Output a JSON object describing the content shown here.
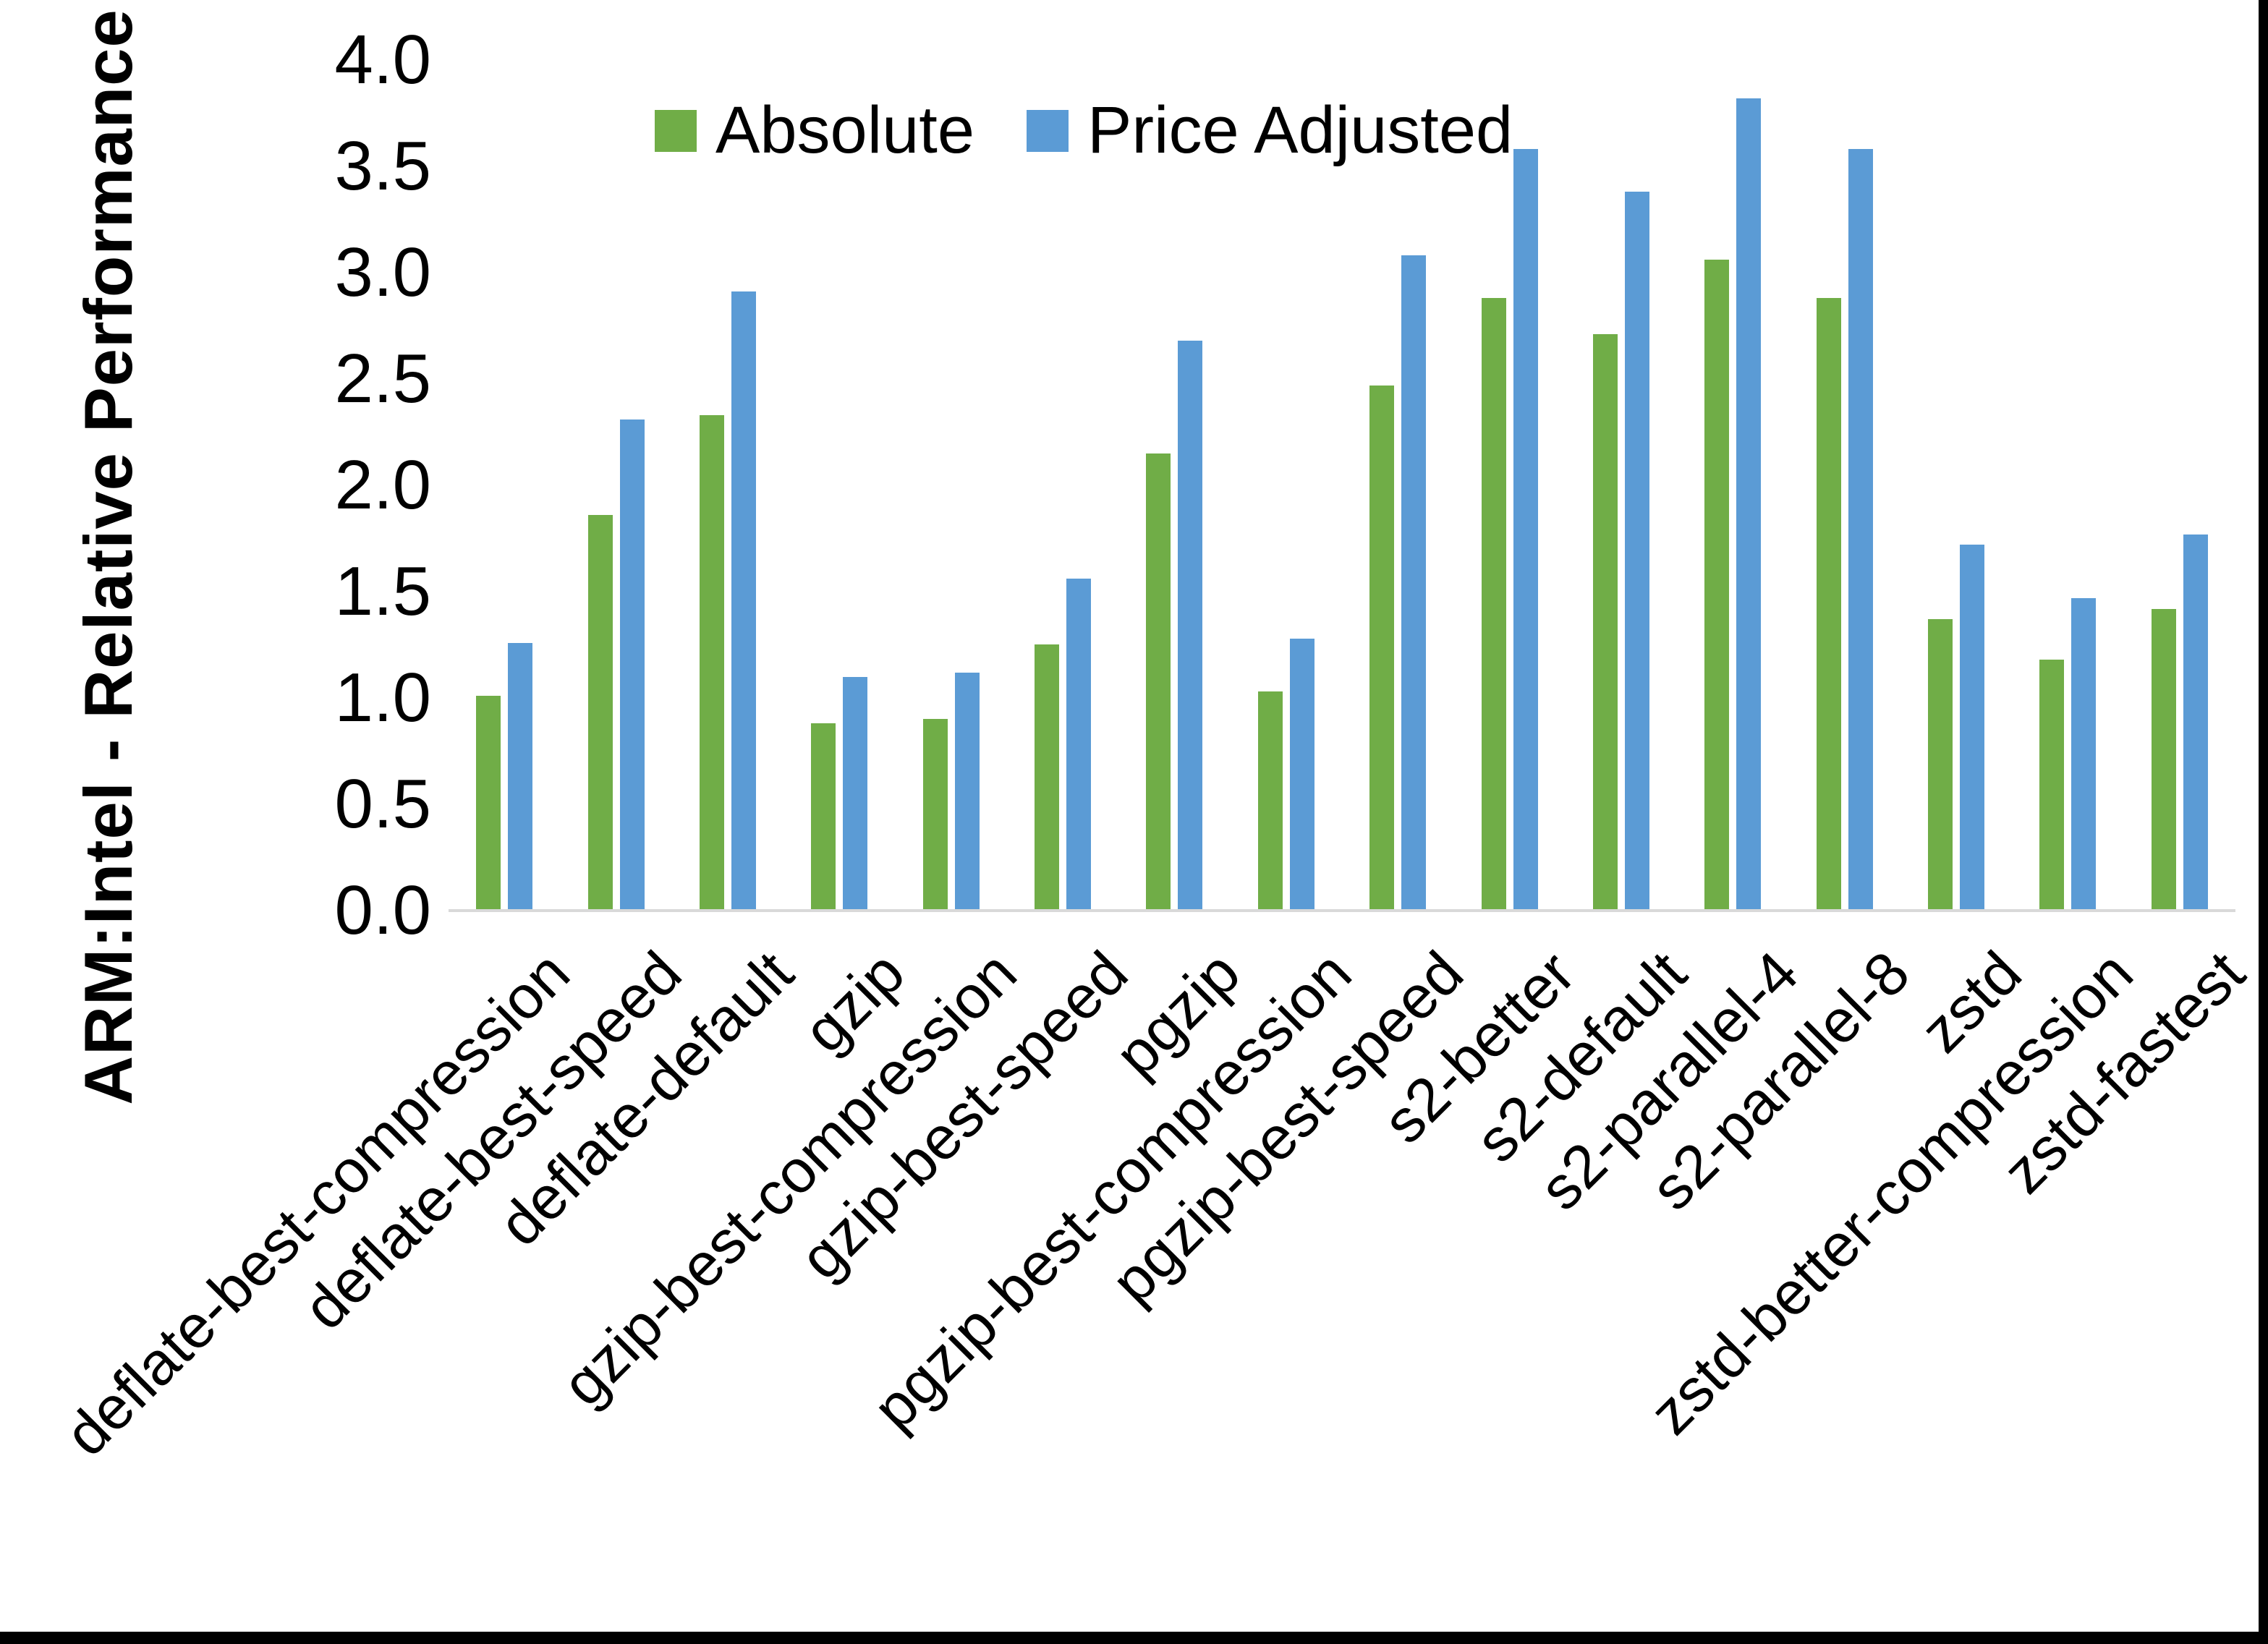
{
  "figure": {
    "y_axis_title": "ARM:Intel - Relative Performance",
    "colors": {
      "absolute": "#70AD47",
      "price_adjusted": "#5B9BD5",
      "axis_line": "#D9D9D9",
      "text": "#000000",
      "frame": "#000000"
    }
  },
  "legend": {
    "absolute_label": "Absolute",
    "price_adjusted_label": "Price Adjusted"
  },
  "chart_data": {
    "type": "bar",
    "title": "",
    "xlabel": "",
    "ylabel": "ARM:Intel - Relative Performance",
    "ylim": [
      0.0,
      4.0
    ],
    "ytick_step": 0.5,
    "ytick_labels": [
      "0.0",
      "0.5",
      "1.0",
      "1.5",
      "2.0",
      "2.5",
      "3.0",
      "3.5",
      "4.0"
    ],
    "grid": false,
    "legend_position": "top-center",
    "categories": [
      "deflate-best-compression",
      "deflate-best-speed",
      "deflate-default",
      "gzip",
      "gzip-best-compression",
      "gzip-best-speed",
      "pgzip",
      "pgzip-best-compression",
      "pgzip-best-speed",
      "s2-better",
      "s2-default",
      "s2-parallel-4",
      "s2-parallel-8",
      "zstd",
      "zstd-better-compression",
      "zstd-fastest"
    ],
    "series": [
      {
        "name": "Absolute",
        "color": "#70AD47",
        "values": [
          1.01,
          1.86,
          2.33,
          0.88,
          0.9,
          1.25,
          2.15,
          1.03,
          2.47,
          2.88,
          2.71,
          3.06,
          2.88,
          1.37,
          1.18,
          1.42
        ]
      },
      {
        "name": "Price Adjusted",
        "color": "#5B9BD5",
        "values": [
          1.26,
          2.31,
          2.91,
          1.1,
          1.12,
          1.56,
          2.68,
          1.28,
          3.08,
          3.58,
          3.38,
          3.82,
          3.58,
          1.72,
          1.47,
          1.77
        ]
      }
    ]
  }
}
